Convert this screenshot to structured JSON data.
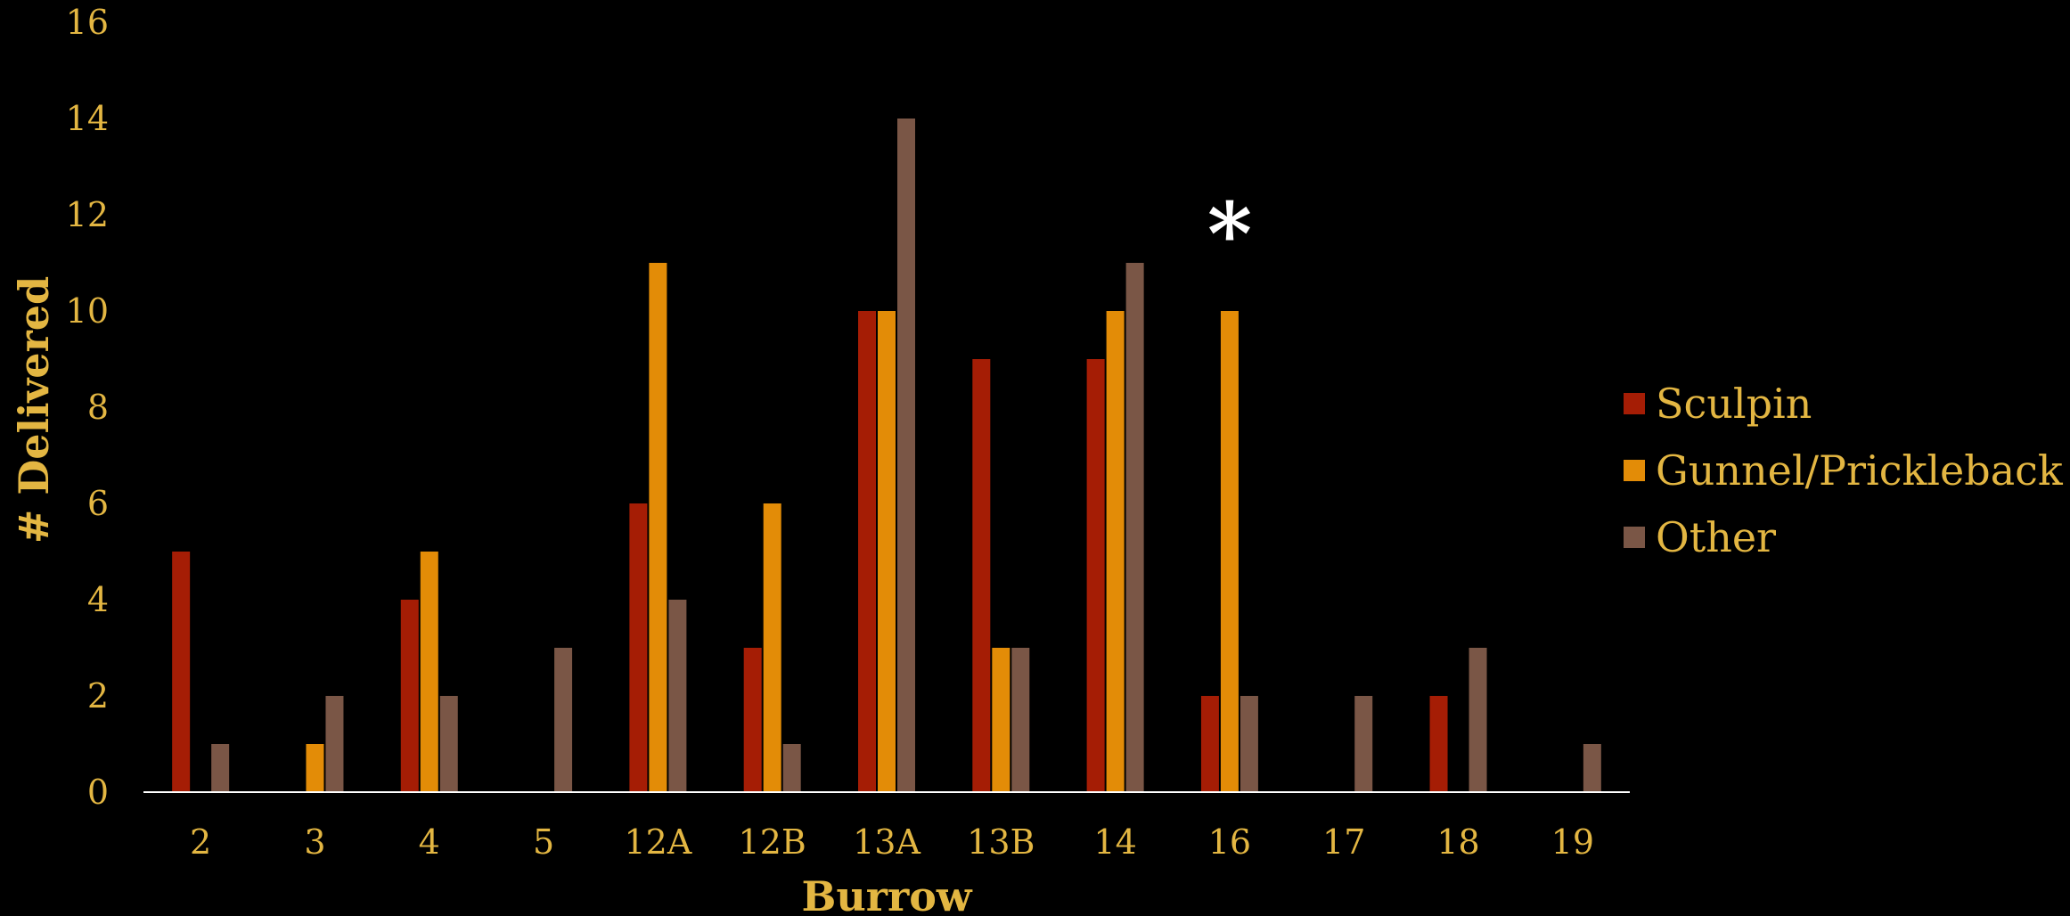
{
  "chart_data": {
    "type": "bar",
    "title": "",
    "xlabel": "Burrow",
    "ylabel": "# Delivered",
    "ylim": [
      0,
      16
    ],
    "yticks": [
      0,
      2,
      4,
      6,
      8,
      10,
      12,
      14,
      16
    ],
    "grid": false,
    "legend_position": "right",
    "categories": [
      "2",
      "3",
      "4",
      "5",
      "12A",
      "12B",
      "13A",
      "13B",
      "14",
      "16",
      "17",
      "18",
      "19"
    ],
    "series": [
      {
        "name": "Sculpin",
        "color": "#A51D05",
        "values": [
          5,
          0,
          4,
          0,
          6,
          3,
          10,
          9,
          9,
          2,
          0,
          2,
          0
        ]
      },
      {
        "name": "Gunnel/Prickleback",
        "color": "#E38C07",
        "values": [
          0,
          1,
          5,
          0,
          11,
          6,
          10,
          3,
          10,
          10,
          0,
          0,
          0
        ]
      },
      {
        "name": "Other",
        "color": "#7A5646",
        "values": [
          1,
          2,
          2,
          3,
          4,
          1,
          14,
          3,
          11,
          2,
          2,
          3,
          1
        ]
      }
    ],
    "annotations": [
      {
        "text": "*",
        "category": "16",
        "value": 11.6,
        "color": "#FFFFFF"
      }
    ],
    "colors": {
      "background": "#000000",
      "text": "#E3B642",
      "axis_line": "#FFFFFF"
    }
  }
}
